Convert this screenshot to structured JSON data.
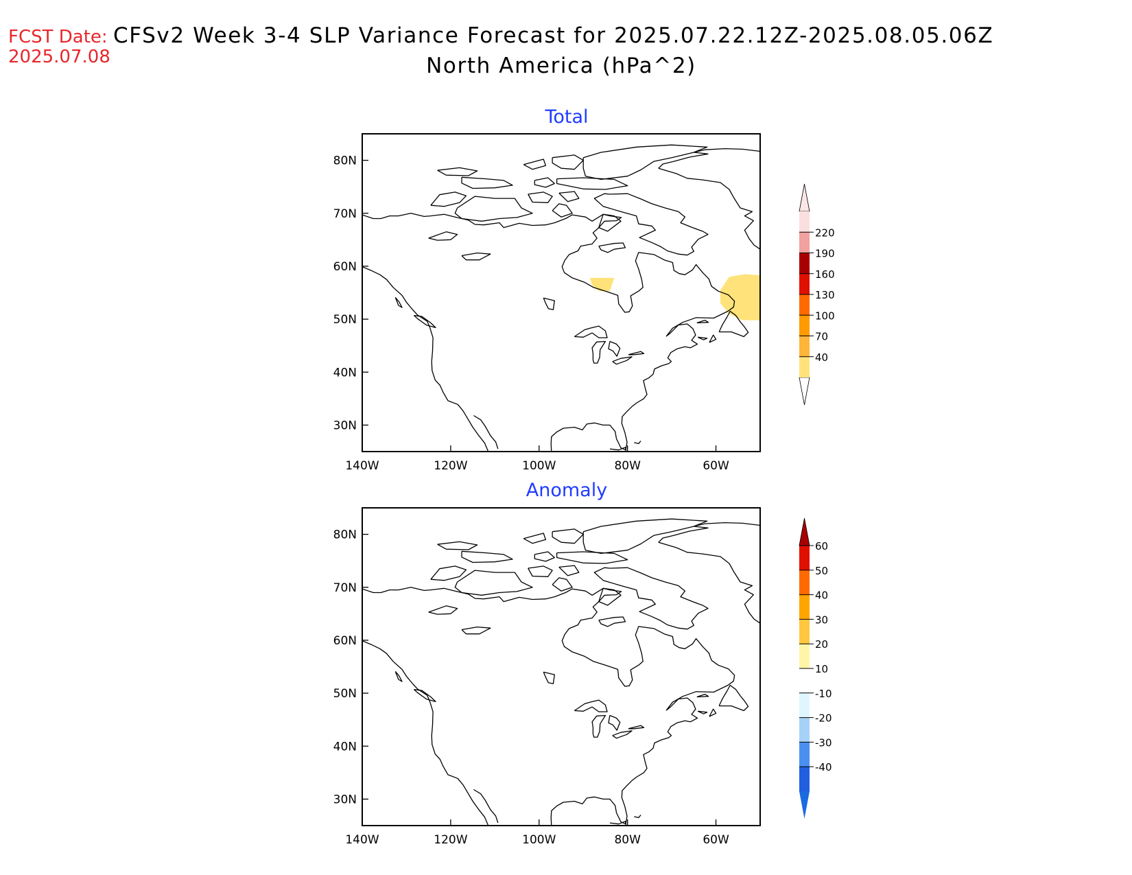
{
  "header": {
    "fcst_label": "FCST Date:",
    "fcst_date": "2025.07.08",
    "title_line1": "CFSv2 Week 3-4 SLP Variance Forecast for 2025.07.22.12Z-2025.08.05.06Z",
    "title_line2": "North America (hPa^2)"
  },
  "colors": {
    "fcst": "#e8262b",
    "title": "#000000",
    "panel_title": "#1f3cff",
    "coast": "#000000"
  },
  "map": {
    "lon_range": [
      -140,
      -50
    ],
    "lat_range": [
      25,
      85
    ],
    "lon_ticks": [
      -140,
      -120,
      -100,
      -80,
      -60
    ],
    "lon_tick_labels": [
      "140W",
      "120W",
      "100W",
      "80W",
      "60W"
    ],
    "lat_ticks": [
      30,
      40,
      50,
      60,
      70,
      80
    ],
    "lat_tick_labels": [
      "30N",
      "40N",
      "50N",
      "60N",
      "70N",
      "80N"
    ]
  },
  "panels": [
    {
      "title": "Total",
      "shaded": [
        {
          "color": "#ffe37a",
          "lonlat": [
            [
              -88.5,
              57.8
            ],
            [
              -83,
              57.8
            ],
            [
              -84,
              55.3
            ],
            [
              -86.5,
              55.3
            ],
            [
              -88,
              56.4
            ]
          ]
        },
        {
          "color": "#ffe37a",
          "lonlat": [
            [
              -57,
              58
            ],
            [
              -53.5,
              58.5
            ],
            [
              -50,
              58.3
            ],
            [
              -50,
              49.8
            ],
            [
              -54,
              49.8
            ],
            [
              -57,
              51
            ],
            [
              -59,
              53
            ],
            [
              -59,
              55.5
            ]
          ]
        }
      ],
      "colorbar": {
        "colors": [
          "#ffe37a",
          "#ffb43a",
          "#ff9a00",
          "#ff6a00",
          "#e01000",
          "#a80000",
          "#f2a0a0",
          "#fbdede"
        ],
        "labels": [
          "40",
          "70",
          "100",
          "130",
          "160",
          "190",
          "220"
        ],
        "under_color": "#ffffff",
        "over_color": "#fbe6e6"
      }
    },
    {
      "title": "Anomaly",
      "shaded": [
        {
          "color": "#fff5a8",
          "lonlat": [
            [
              -50.3,
              54.6
            ],
            [
              -50,
              54.6
            ],
            [
              -50,
              55
            ],
            [
              -50.3,
              55
            ]
          ]
        }
      ],
      "colorbar": {
        "colors": [
          "#2060e0",
          "#4a90f0",
          "#a6d2f8",
          "#e0f6ff",
          "#ffffff",
          "#fff5a8",
          "#ffc640",
          "#ffa500",
          "#ff6a00",
          "#e01000"
        ],
        "labels": [
          "-40",
          "-30",
          "-20",
          "-10",
          "10",
          "20",
          "30",
          "40",
          "50",
          "60"
        ],
        "under_color": "#1a6ae0",
        "over_color": "#a80000"
      }
    }
  ]
}
